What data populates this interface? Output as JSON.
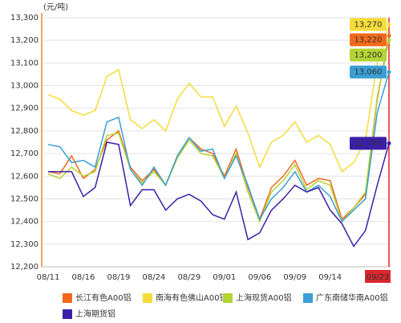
{
  "chart_data": {
    "type": "line",
    "unit_label": "(元/吨)",
    "categories": [
      "08/11",
      null,
      null,
      "08/16",
      null,
      null,
      "08/19",
      null,
      null,
      "08/24",
      null,
      null,
      "08/29",
      null,
      null,
      "09/01",
      null,
      null,
      "09/06",
      null,
      null,
      "09/09",
      null,
      null,
      "09/14",
      null,
      null,
      null,
      null,
      "09/23"
    ],
    "series": [
      {
        "name": "长江有色A00铝",
        "color": "#f26a1b",
        "values": [
          12620,
          12610,
          12690,
          12590,
          12630,
          12760,
          12800,
          12640,
          12580,
          12630,
          12560,
          12690,
          12770,
          12720,
          12700,
          12600,
          12720,
          12550,
          12410,
          12550,
          12600,
          12670,
          12560,
          12590,
          12580,
          12410,
          12460,
          12520,
          12940,
          13220
        ],
        "value_labels": [
          null,
          null,
          null,
          null,
          null,
          null,
          null,
          null,
          null,
          null,
          null,
          null,
          null,
          null,
          null,
          null,
          null,
          null,
          null,
          null,
          null,
          null,
          null,
          null,
          null,
          null,
          null,
          null,
          null,
          "13,220"
        ]
      },
      {
        "name": "南海有色佛山A00铝",
        "color": "#f5dc3a",
        "values": [
          12960,
          12940,
          12890,
          12870,
          12890,
          13040,
          13070,
          12850,
          12810,
          12850,
          12800,
          12940,
          13010,
          12950,
          12950,
          12820,
          12910,
          12790,
          12640,
          12750,
          12780,
          12840,
          12750,
          12780,
          12740,
          12620,
          12660,
          12760,
          13100,
          13270
        ],
        "value_labels": [
          null,
          null,
          null,
          null,
          null,
          null,
          null,
          null,
          null,
          null,
          null,
          null,
          null,
          null,
          null,
          null,
          null,
          null,
          null,
          null,
          null,
          null,
          null,
          null,
          null,
          null,
          null,
          null,
          null,
          "13,270"
        ]
      },
      {
        "name": "上海现货A00铝",
        "color": "#b4d334",
        "values": [
          12610,
          12590,
          12640,
          12600,
          12620,
          12780,
          12790,
          12630,
          12570,
          12620,
          12560,
          12680,
          12760,
          12700,
          12690,
          12590,
          12700,
          12530,
          12400,
          12530,
          12580,
          12650,
          12540,
          12580,
          12560,
          12400,
          12460,
          12530,
          12950,
          13200
        ],
        "value_labels": [
          null,
          null,
          null,
          null,
          null,
          null,
          null,
          null,
          null,
          null,
          null,
          null,
          null,
          null,
          null,
          null,
          null,
          null,
          null,
          null,
          null,
          null,
          null,
          null,
          null,
          null,
          null,
          null,
          null,
          "13,200"
        ]
      },
      {
        "name": "广东南储华南A00铝",
        "color": "#3a9fd5",
        "values": [
          12740,
          12730,
          12660,
          12670,
          12640,
          12840,
          12860,
          12630,
          12560,
          12640,
          12560,
          12690,
          12770,
          12710,
          12720,
          12590,
          12690,
          12560,
          12410,
          12500,
          12550,
          12620,
          12530,
          12560,
          12510,
          12400,
          12450,
          12500,
          12880,
          13060
        ],
        "value_labels": [
          null,
          null,
          null,
          null,
          null,
          null,
          null,
          null,
          null,
          null,
          null,
          null,
          null,
          null,
          null,
          null,
          null,
          null,
          null,
          null,
          null,
          null,
          null,
          null,
          null,
          null,
          null,
          null,
          null,
          "13,060"
        ]
      },
      {
        "name": "上海期货铝",
        "color": "#3b1fa8",
        "values": [
          12620,
          12620,
          12620,
          12510,
          12550,
          12750,
          12740,
          12470,
          12540,
          12540,
          12450,
          12500,
          12520,
          12490,
          12430,
          12410,
          12530,
          12320,
          12350,
          12450,
          12500,
          12560,
          12530,
          12550,
          12450,
          12390,
          12290,
          12360,
          12560,
          12745
        ],
        "value_labels": [
          null,
          null,
          null,
          null,
          null,
          null,
          null,
          null,
          null,
          null,
          null,
          null,
          null,
          null,
          null,
          null,
          null,
          null,
          null,
          null,
          null,
          null,
          null,
          null,
          null,
          null,
          null,
          null,
          null,
          "12,745"
        ]
      }
    ],
    "ylim": [
      12200,
      13300
    ],
    "yticks": [
      {
        "value": 12200,
        "label": "12,200"
      },
      {
        "value": 12300,
        "label": "12,300"
      },
      {
        "value": 12400,
        "label": "12,400"
      },
      {
        "value": 12500,
        "label": "12,500"
      },
      {
        "value": 12600,
        "label": "12,600"
      },
      {
        "value": 12700,
        "label": "12,700"
      },
      {
        "value": 12800,
        "label": "12,800"
      },
      {
        "value": 12900,
        "label": "12,900"
      },
      {
        "value": 13000,
        "label": "13,000"
      },
      {
        "value": 13100,
        "label": "13,100"
      },
      {
        "value": 13200,
        "label": "13,200"
      },
      {
        "value": 13300,
        "label": "13,300"
      }
    ],
    "grid": true
  }
}
